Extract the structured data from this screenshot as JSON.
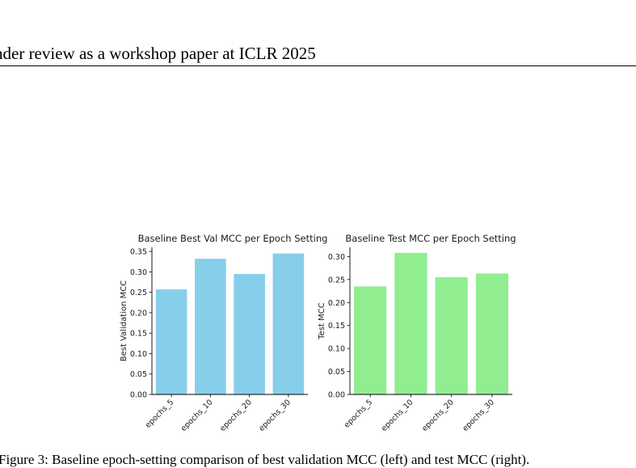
{
  "header": {
    "text": "nder review as a workshop paper at ICLR 2025"
  },
  "figure": {
    "caption": "Figure 3: Baseline epoch-setting comparison of best validation MCC (left) and test MCC (right)."
  },
  "chart_data": [
    {
      "type": "bar",
      "title": "Baseline Best Val MCC per Epoch Setting",
      "xlabel": "",
      "ylabel": "Best Validation MCC",
      "categories": [
        "epochs_5",
        "epochs_10",
        "epochs_20",
        "epochs_30"
      ],
      "values": [
        0.257,
        0.332,
        0.295,
        0.345
      ],
      "ylim": [
        0,
        0.36
      ],
      "yticks": [
        0.0,
        0.05,
        0.1,
        0.15,
        0.2,
        0.25,
        0.3,
        0.35
      ],
      "color": "#87ceeb",
      "grid": false,
      "legend": "none"
    },
    {
      "type": "bar",
      "title": "Baseline Test MCC per Epoch Setting",
      "xlabel": "",
      "ylabel": "Test MCC",
      "categories": [
        "epochs_5",
        "epochs_10",
        "epochs_20",
        "epochs_30"
      ],
      "values": [
        0.235,
        0.308,
        0.255,
        0.263
      ],
      "ylim": [
        0,
        0.32
      ],
      "yticks": [
        0.0,
        0.05,
        0.1,
        0.15,
        0.2,
        0.25,
        0.3
      ],
      "color": "#90ee90",
      "grid": false,
      "legend": "none"
    }
  ]
}
